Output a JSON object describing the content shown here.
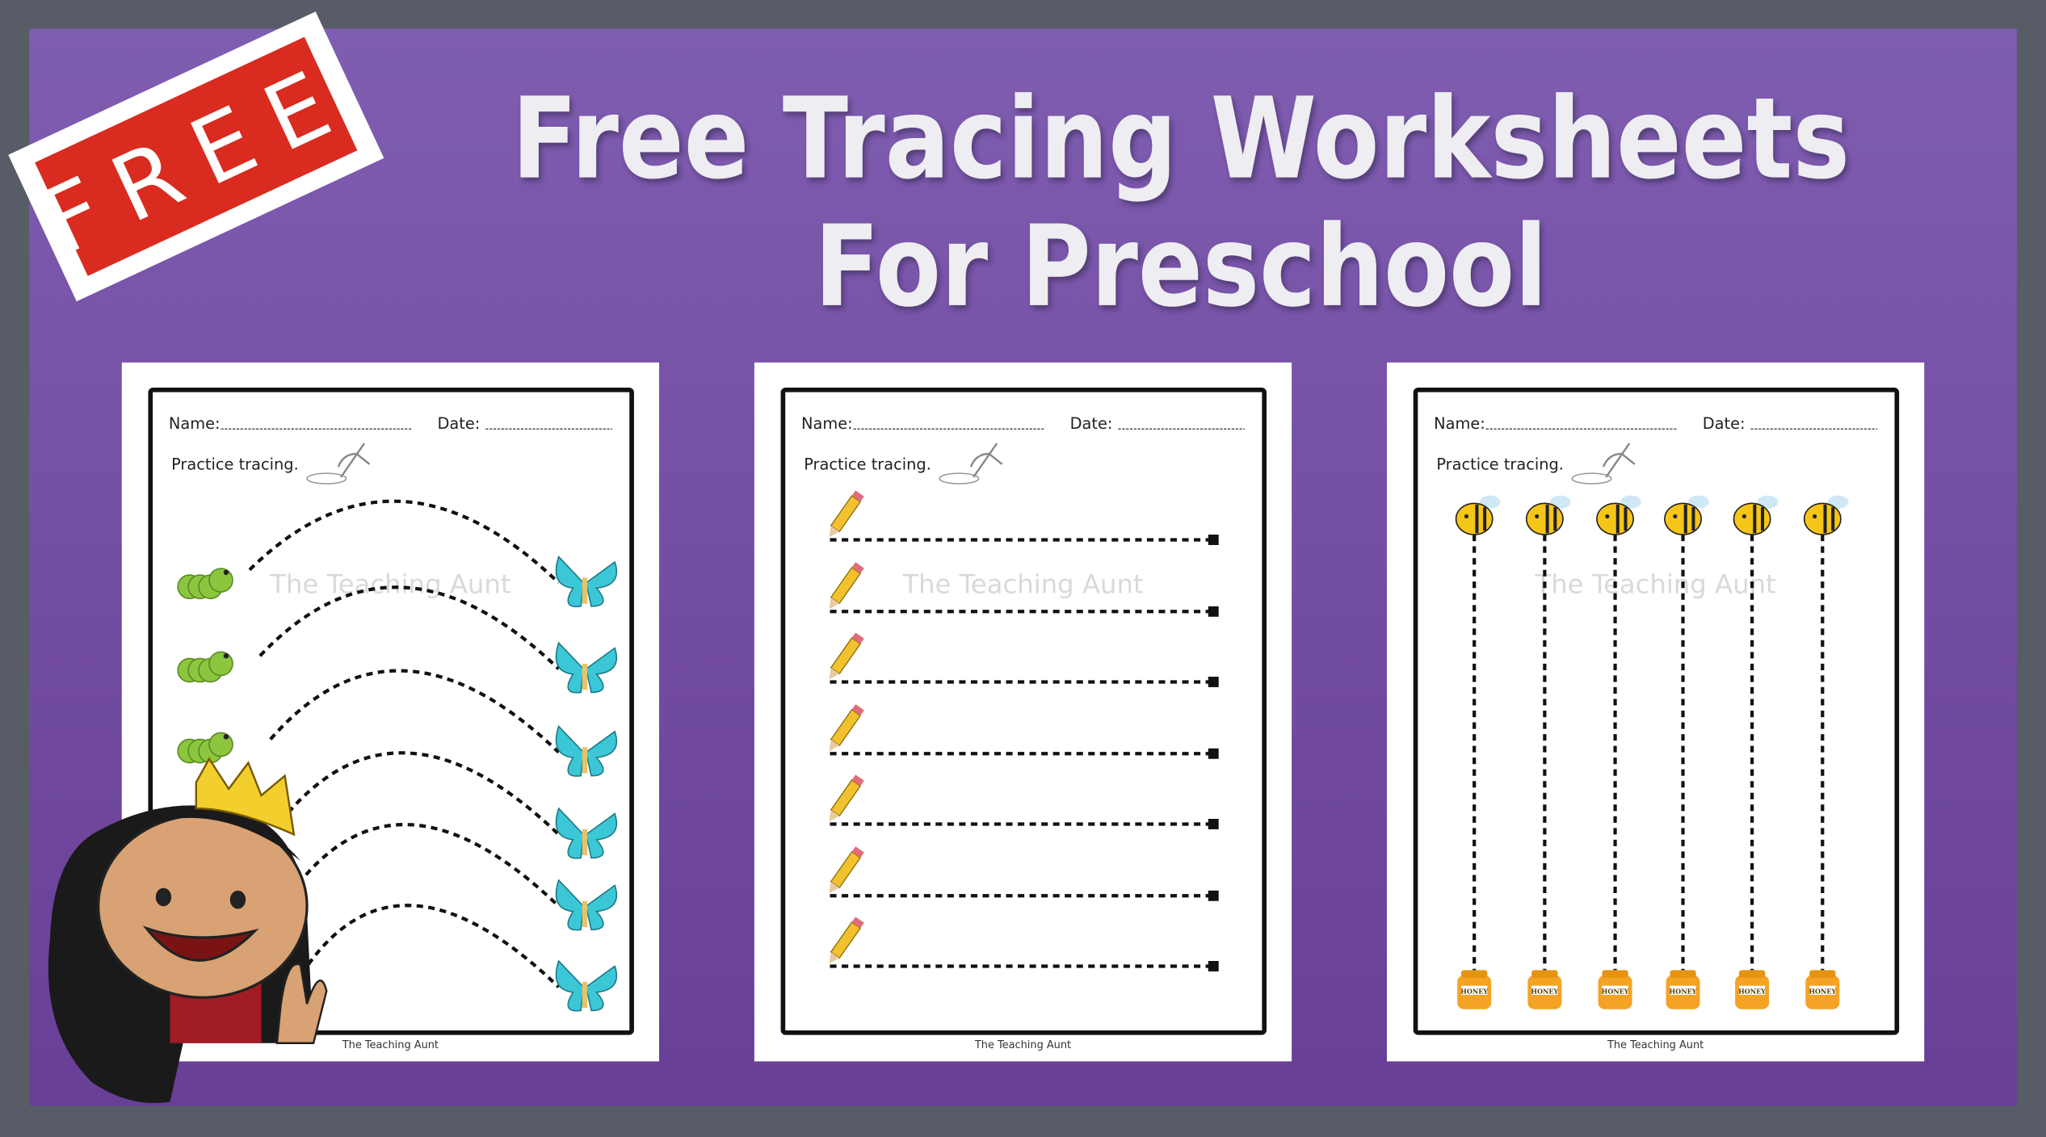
{
  "banner": {
    "title_line1": "Free Tracing Worksheets",
    "title_line2": "For Preschool",
    "badge_text": "FREE",
    "colors": {
      "background": "#585c66",
      "panel_top": "#7f5db0",
      "panel_bottom": "#683f96",
      "badge_red": "#d92b1f",
      "title": "#eeedf2"
    }
  },
  "sheets": [
    {
      "name_label": "Name:",
      "date_label": "Date:",
      "instruction": "Practice tracing.",
      "watermark": "The Teaching Aunt",
      "footer": "The Teaching Aunt",
      "theme": "caterpillar-to-butterfly curves"
    },
    {
      "name_label": "Name:",
      "date_label": "Date:",
      "instruction": "Practice tracing.",
      "watermark": "The Teaching Aunt",
      "footer": "The Teaching Aunt",
      "theme": "pencil horizontal lines"
    },
    {
      "name_label": "Name:",
      "date_label": "Date:",
      "instruction": "Practice tracing.",
      "watermark": "The Teaching Aunt",
      "footer": "The Teaching Aunt",
      "theme": "bee to honey vertical lines",
      "jar_label": "HONEY"
    }
  ]
}
